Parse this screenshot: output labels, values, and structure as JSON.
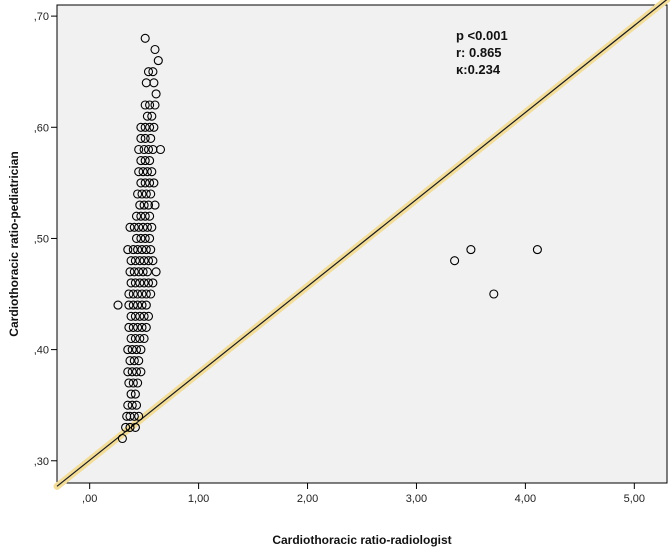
{
  "chart_data": {
    "type": "scatter",
    "title": "",
    "xlabel": "Cardiothoracic ratio-radiologist",
    "ylabel": "Cardiothoracic ratio-pediatrician",
    "xlim": [
      -0.3,
      5.3
    ],
    "ylim": [
      0.28,
      0.71
    ],
    "x_ticks": [
      0,
      1,
      2,
      3,
      4,
      5
    ],
    "x_tick_labels": [
      ",00",
      "1,00",
      "2,00",
      "3,00",
      "4,00",
      "5,00"
    ],
    "y_ticks": [
      0.3,
      0.4,
      0.5,
      0.6,
      0.7
    ],
    "y_tick_labels": [
      ",30",
      ",40",
      ",50",
      ",60",
      ",70"
    ],
    "grid": false,
    "legend": "none",
    "annotations": [
      "p <0.001",
      "r: 0.865",
      "κ:0.234"
    ],
    "reference_line": {
      "x": [
        -0.3,
        5.3
      ],
      "y": [
        0.277,
        0.715
      ]
    },
    "points": [
      [
        0.51,
        0.68
      ],
      [
        0.6,
        0.67
      ],
      [
        0.63,
        0.66
      ],
      [
        0.54,
        0.65
      ],
      [
        0.58,
        0.65
      ],
      [
        0.52,
        0.64
      ],
      [
        0.59,
        0.64
      ],
      [
        0.61,
        0.63
      ],
      [
        0.51,
        0.62
      ],
      [
        0.55,
        0.62
      ],
      [
        0.6,
        0.62
      ],
      [
        0.53,
        0.61
      ],
      [
        0.57,
        0.61
      ],
      [
        0.47,
        0.6
      ],
      [
        0.51,
        0.6
      ],
      [
        0.55,
        0.6
      ],
      [
        0.59,
        0.6
      ],
      [
        0.47,
        0.59
      ],
      [
        0.51,
        0.59
      ],
      [
        0.56,
        0.59
      ],
      [
        0.45,
        0.58
      ],
      [
        0.5,
        0.58
      ],
      [
        0.54,
        0.58
      ],
      [
        0.58,
        0.58
      ],
      [
        0.65,
        0.58
      ],
      [
        0.47,
        0.57
      ],
      [
        0.51,
        0.57
      ],
      [
        0.55,
        0.57
      ],
      [
        0.45,
        0.56
      ],
      [
        0.49,
        0.56
      ],
      [
        0.53,
        0.56
      ],
      [
        0.57,
        0.56
      ],
      [
        0.47,
        0.55
      ],
      [
        0.51,
        0.55
      ],
      [
        0.55,
        0.55
      ],
      [
        0.59,
        0.55
      ],
      [
        0.44,
        0.54
      ],
      [
        0.48,
        0.54
      ],
      [
        0.52,
        0.54
      ],
      [
        0.56,
        0.54
      ],
      [
        0.46,
        0.53
      ],
      [
        0.5,
        0.53
      ],
      [
        0.54,
        0.53
      ],
      [
        0.6,
        0.53
      ],
      [
        0.43,
        0.52
      ],
      [
        0.47,
        0.52
      ],
      [
        0.51,
        0.52
      ],
      [
        0.55,
        0.52
      ],
      [
        0.37,
        0.51
      ],
      [
        0.41,
        0.51
      ],
      [
        0.45,
        0.51
      ],
      [
        0.49,
        0.51
      ],
      [
        0.53,
        0.51
      ],
      [
        0.57,
        0.51
      ],
      [
        0.43,
        0.5
      ],
      [
        0.47,
        0.5
      ],
      [
        0.51,
        0.5
      ],
      [
        0.55,
        0.5
      ],
      [
        0.35,
        0.49
      ],
      [
        0.4,
        0.49
      ],
      [
        0.44,
        0.49
      ],
      [
        0.48,
        0.49
      ],
      [
        0.52,
        0.49
      ],
      [
        0.56,
        0.49
      ],
      [
        0.38,
        0.48
      ],
      [
        0.42,
        0.48
      ],
      [
        0.46,
        0.48
      ],
      [
        0.5,
        0.48
      ],
      [
        0.54,
        0.48
      ],
      [
        0.58,
        0.48
      ],
      [
        0.37,
        0.47
      ],
      [
        0.41,
        0.47
      ],
      [
        0.45,
        0.47
      ],
      [
        0.49,
        0.47
      ],
      [
        0.53,
        0.47
      ],
      [
        0.61,
        0.47
      ],
      [
        0.38,
        0.46
      ],
      [
        0.42,
        0.46
      ],
      [
        0.46,
        0.46
      ],
      [
        0.5,
        0.46
      ],
      [
        0.54,
        0.46
      ],
      [
        0.58,
        0.46
      ],
      [
        0.36,
        0.45
      ],
      [
        0.4,
        0.45
      ],
      [
        0.44,
        0.45
      ],
      [
        0.48,
        0.45
      ],
      [
        0.52,
        0.45
      ],
      [
        0.56,
        0.45
      ],
      [
        0.26,
        0.44
      ],
      [
        0.36,
        0.44
      ],
      [
        0.4,
        0.44
      ],
      [
        0.44,
        0.44
      ],
      [
        0.48,
        0.44
      ],
      [
        0.52,
        0.44
      ],
      [
        0.38,
        0.43
      ],
      [
        0.42,
        0.43
      ],
      [
        0.46,
        0.43
      ],
      [
        0.5,
        0.43
      ],
      [
        0.54,
        0.43
      ],
      [
        0.36,
        0.42
      ],
      [
        0.4,
        0.42
      ],
      [
        0.44,
        0.42
      ],
      [
        0.48,
        0.42
      ],
      [
        0.52,
        0.42
      ],
      [
        0.38,
        0.41
      ],
      [
        0.42,
        0.41
      ],
      [
        0.46,
        0.41
      ],
      [
        0.5,
        0.41
      ],
      [
        0.35,
        0.4
      ],
      [
        0.39,
        0.4
      ],
      [
        0.43,
        0.4
      ],
      [
        0.47,
        0.4
      ],
      [
        0.37,
        0.39
      ],
      [
        0.41,
        0.39
      ],
      [
        0.45,
        0.39
      ],
      [
        0.35,
        0.38
      ],
      [
        0.39,
        0.38
      ],
      [
        0.43,
        0.38
      ],
      [
        0.47,
        0.38
      ],
      [
        0.36,
        0.37
      ],
      [
        0.4,
        0.37
      ],
      [
        0.44,
        0.37
      ],
      [
        0.38,
        0.36
      ],
      [
        0.42,
        0.36
      ],
      [
        0.35,
        0.35
      ],
      [
        0.39,
        0.35
      ],
      [
        0.43,
        0.35
      ],
      [
        0.37,
        0.34
      ],
      [
        0.41,
        0.34
      ],
      [
        0.45,
        0.34
      ],
      [
        0.34,
        0.34
      ],
      [
        0.33,
        0.33
      ],
      [
        0.37,
        0.33
      ],
      [
        0.42,
        0.33
      ],
      [
        0.3,
        0.32
      ],
      [
        3.35,
        0.48
      ],
      [
        3.5,
        0.49
      ],
      [
        3.71,
        0.45
      ],
      [
        4.11,
        0.49
      ]
    ]
  }
}
